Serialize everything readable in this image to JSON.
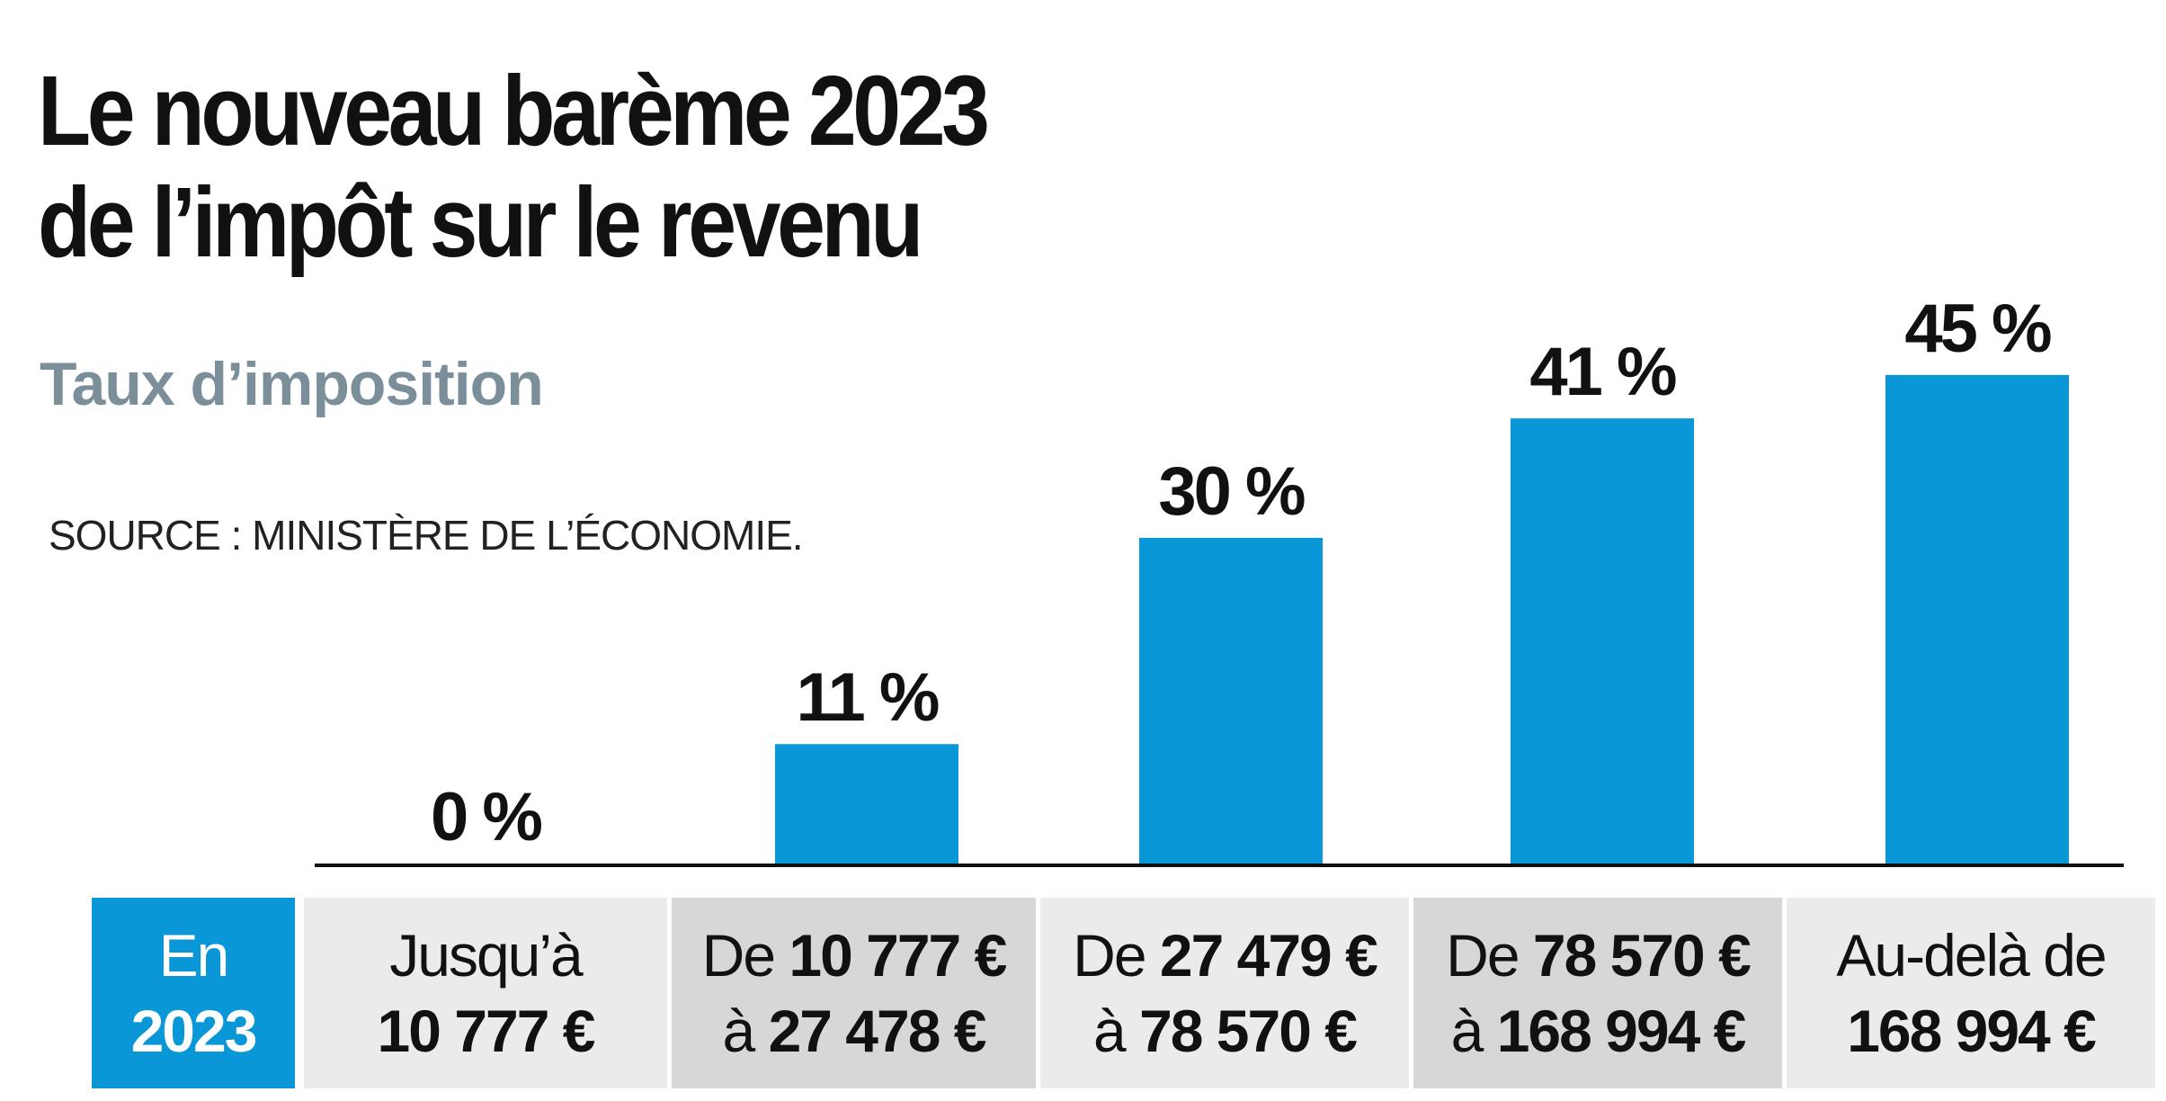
{
  "title_lines": [
    "Le nouveau barème 2023",
    "de l’impôt sur le revenu"
  ],
  "subtitle": "Taux d’imposition",
  "source": "SOURCE : MINISTÈRE DE L’ÉCONOMIE.",
  "colors": {
    "bar": "#0a97d8",
    "year_cell": "#0a97d8",
    "cell_light": "#ebebeb",
    "cell_dark": "#d7d7d7",
    "subtitle": "#7a8f99"
  },
  "year_cell": {
    "line1": "En",
    "line2": "2023"
  },
  "brackets": [
    {
      "line1": "Jusqu’à",
      "line2_bold": "10 777 €"
    },
    {
      "line1_prefix": "De ",
      "line1_bold": "10 777 €",
      "line2_prefix": "à ",
      "line2_bold": "27 478 €"
    },
    {
      "line1_prefix": "De ",
      "line1_bold": "27 479 €",
      "line2_prefix": "à ",
      "line2_bold": "78 570 €"
    },
    {
      "line1_prefix": "De ",
      "line1_bold": "78 570 €",
      "line2_prefix": "à ",
      "line2_bold": "168 994 €"
    },
    {
      "line1": "Au-delà de",
      "line2_bold": "168 994 €"
    }
  ],
  "chart_data": {
    "type": "bar",
    "categories": [
      "Jusqu’à 10 777 €",
      "De 10 777 € à 27 478 €",
      "De 27 479 € à 78 570 €",
      "De 78 570 € à 168 994 €",
      "Au-delà de 168 994 €"
    ],
    "values": [
      0,
      11,
      30,
      41,
      45
    ],
    "labels": [
      "0 %",
      "11 %",
      "30 %",
      "41 %",
      "45 %"
    ],
    "unit": "%",
    "grid": false,
    "ylim": [
      0,
      45
    ]
  }
}
